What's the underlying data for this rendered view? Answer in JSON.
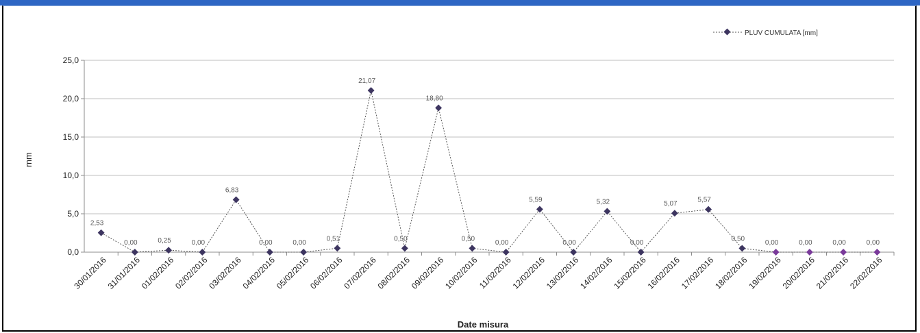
{
  "chart_data": {
    "type": "line",
    "xlabel": "Date misura",
    "ylabel": "mm",
    "ylim": [
      0,
      25
    ],
    "yticks": [
      "0,0",
      "5,0",
      "10,0",
      "15,0",
      "20,0",
      "25,0"
    ],
    "grid": true,
    "legend_position": "top-right",
    "categories": [
      "30/01/2016",
      "31/01/2016",
      "01/02/2016",
      "02/02/2016",
      "03/02/2016",
      "04/02/2016",
      "05/02/2016",
      "06/02/2016",
      "07/02/2016",
      "08/02/2016",
      "09/02/2016",
      "10/02/2016",
      "11/02/2016",
      "12/02/2016",
      "13/02/2016",
      "14/02/2016",
      "15/02/2016",
      "16/02/2016",
      "17/02/2016",
      "18/02/2016",
      "19/02/2016",
      "20/02/2016",
      "21/02/2016",
      "22/02/2016"
    ],
    "series": [
      {
        "name": "PLUV CUMULATA [mm]",
        "values": [
          2.53,
          0.0,
          0.25,
          0.0,
          6.83,
          0.0,
          0.0,
          0.51,
          21.07,
          0.5,
          18.8,
          0.5,
          0.0,
          5.59,
          0.0,
          5.32,
          0.0,
          5.07,
          5.57,
          0.5,
          0.0,
          0.0,
          0.0,
          0.0
        ],
        "labels": [
          "2,53",
          "0,00",
          "0,25",
          "0,00",
          "6,83",
          "0,00",
          "0,00",
          "0,51",
          "21,07",
          "0,50",
          "18,80",
          "0,50",
          "0,00",
          "5,59",
          "0,00",
          "5,32",
          "0,00",
          "5,07",
          "5,57",
          "0,50",
          "0,00",
          "0,00",
          "0,00",
          "0,00"
        ]
      }
    ],
    "colors": {
      "line": "#555555",
      "marker": "#3d3560",
      "marker_zero": "#7a3a9a",
      "grid": "#bfbfbf"
    }
  }
}
